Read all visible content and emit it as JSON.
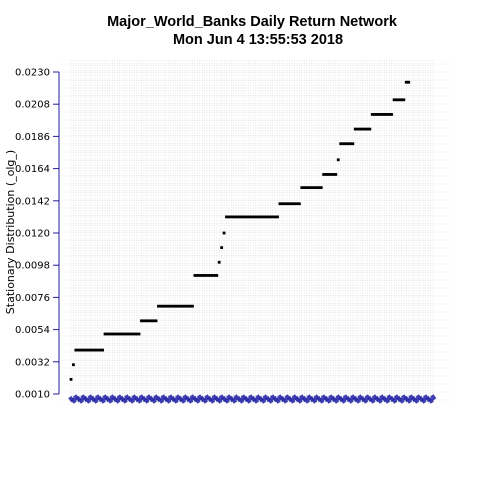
{
  "chart_data": {
    "type": "scatter",
    "title": "Major_World_Banks  Daily Return Network",
    "subtitle": "Mon Jun  4 13:55:53 2018",
    "xlabel": "",
    "ylabel": "Stationary Distribution (_olg_)",
    "ylim": [
      0.0008,
      0.0236
    ],
    "yticks": [
      "0.0010",
      "0.0032",
      "0.0054",
      "0.0076",
      "0.0098",
      "0.0120",
      "0.0142",
      "0.0164",
      "0.0186",
      "0.0208",
      "0.0230"
    ],
    "grid": true,
    "x_tick_label_count": 150,
    "colors": {
      "axis": "#2020a0",
      "points": "#000000",
      "ticklabels": "#2a2aa8",
      "grid": "#d8d8d8"
    },
    "series": [
      {
        "segments": [
          {
            "x_from": 1,
            "x_to": 1,
            "y": 0.002
          },
          {
            "x_from": 2,
            "x_to": 2,
            "y": 0.003
          },
          {
            "x_from": 3,
            "x_to": 14,
            "y": 0.004
          },
          {
            "x_from": 15,
            "x_to": 29,
            "y": 0.0051
          },
          {
            "x_from": 30,
            "x_to": 36,
            "y": 0.006
          },
          {
            "x_from": 37,
            "x_to": 51,
            "y": 0.007
          },
          {
            "x_from": 52,
            "x_to": 61,
            "y": 0.0091
          },
          {
            "x_from": 62,
            "x_to": 62,
            "y": 0.01
          },
          {
            "x_from": 63,
            "x_to": 63,
            "y": 0.011
          },
          {
            "x_from": 64,
            "x_to": 64,
            "y": 0.012
          },
          {
            "x_from": 65,
            "x_to": 86,
            "y": 0.0131
          },
          {
            "x_from": 87,
            "x_to": 95,
            "y": 0.014
          },
          {
            "x_from": 96,
            "x_to": 104,
            "y": 0.0151
          },
          {
            "x_from": 105,
            "x_to": 110,
            "y": 0.016
          },
          {
            "x_from": 111,
            "x_to": 111,
            "y": 0.017
          },
          {
            "x_from": 112,
            "x_to": 117,
            "y": 0.0181
          },
          {
            "x_from": 118,
            "x_to": 124,
            "y": 0.0191
          },
          {
            "x_from": 125,
            "x_to": 133,
            "y": 0.0201
          },
          {
            "x_from": 134,
            "x_to": 138,
            "y": 0.0211
          },
          {
            "x_from": 139,
            "x_to": 140,
            "y": 0.0223
          }
        ]
      }
    ]
  }
}
